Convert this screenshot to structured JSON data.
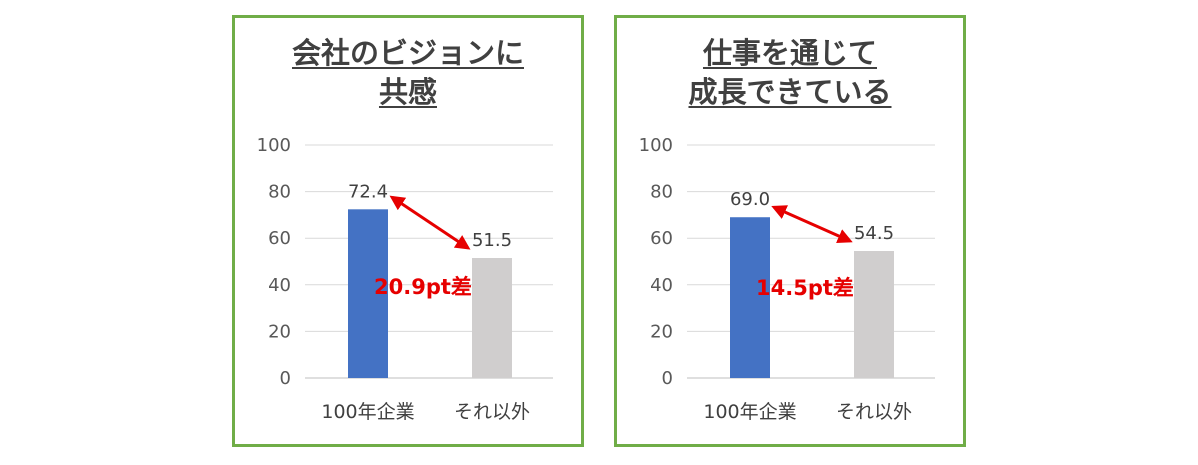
{
  "colors": {
    "border": "#70ad47",
    "bar_primary": "#4472c4",
    "bar_secondary": "#d0cece",
    "annotation": "#e60000",
    "grid": "#d9d9d9"
  },
  "chart_data": [
    {
      "type": "bar",
      "title_lines": [
        "会社のビジョンに",
        "共感"
      ],
      "categories": [
        "100年企業",
        "それ以外"
      ],
      "values": [
        72.4,
        51.5
      ],
      "value_labels": [
        "72.4",
        "51.5"
      ],
      "ylim": [
        0,
        100
      ],
      "yticks": [
        "0",
        "20",
        "40",
        "60",
        "80",
        "100"
      ],
      "grid": true,
      "legend": "none",
      "annotation": {
        "text": "20.9pt差",
        "arrow": "double-headed, red"
      }
    },
    {
      "type": "bar",
      "title_lines": [
        "仕事を通じて",
        "成長できている"
      ],
      "categories": [
        "100年企業",
        "それ以外"
      ],
      "values": [
        69.0,
        54.5
      ],
      "value_labels": [
        "69.0",
        "54.5"
      ],
      "ylim": [
        0,
        100
      ],
      "yticks": [
        "0",
        "20",
        "40",
        "60",
        "80",
        "100"
      ],
      "grid": true,
      "legend": "none",
      "annotation": {
        "text": "14.5pt差",
        "arrow": "double-headed, red"
      }
    }
  ]
}
